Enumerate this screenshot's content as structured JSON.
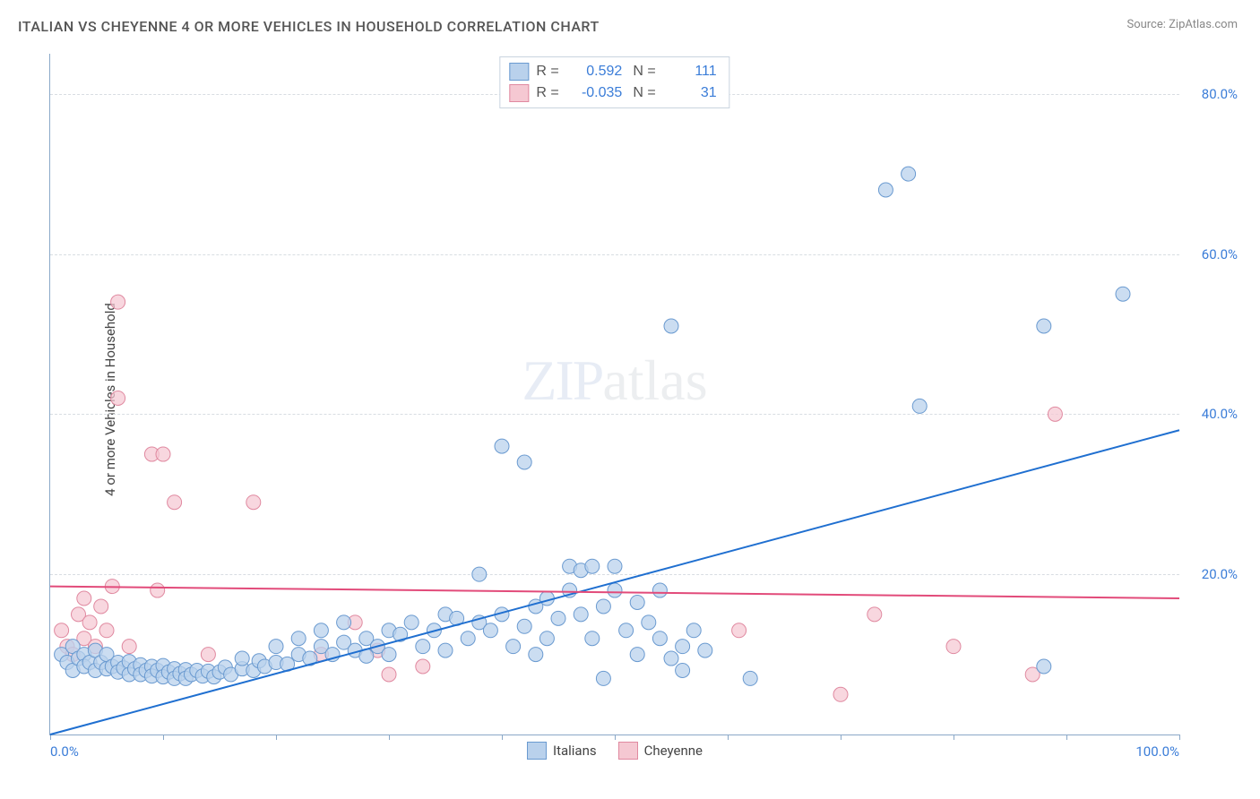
{
  "title": "ITALIAN VS CHEYENNE 4 OR MORE VEHICLES IN HOUSEHOLD CORRELATION CHART",
  "source_prefix": "Source: ",
  "source": "ZipAtlas.com",
  "ylabel": "4 or more Vehicles in Household",
  "watermark_zip": "ZIP",
  "watermark_atlas": "atlas",
  "chart": {
    "type": "scatter",
    "xlim": [
      0,
      100
    ],
    "ylim": [
      0,
      85
    ],
    "xtick_positions": [
      0,
      10,
      20,
      30,
      40,
      50,
      60,
      70,
      80,
      90,
      100
    ],
    "xtick_labels": {
      "0": "0.0%",
      "100": "100.0%"
    },
    "ytick_positions": [
      20,
      40,
      60,
      80
    ],
    "ytick_labels": [
      "20.0%",
      "40.0%",
      "60.0%",
      "80.0%"
    ],
    "grid_color": "#d8dde2",
    "axis_color": "#8aa8c8",
    "tick_label_color": "#3b7dd8",
    "background_color": "#ffffff",
    "series": [
      {
        "name": "Italians",
        "marker_fill": "#b9d1ec",
        "marker_stroke": "#6a9ad0",
        "marker_opacity": 0.75,
        "marker_radius": 8,
        "trend": {
          "x0": 0,
          "y0": 0,
          "x1": 100,
          "y1": 38,
          "color": "#1f6fd0",
          "width": 2
        },
        "R": 0.592,
        "N": 111,
        "points": [
          [
            1,
            10
          ],
          [
            1.5,
            9
          ],
          [
            2,
            11
          ],
          [
            2,
            8
          ],
          [
            2.5,
            9.5
          ],
          [
            3,
            10
          ],
          [
            3,
            8.5
          ],
          [
            3.5,
            9
          ],
          [
            4,
            10.5
          ],
          [
            4,
            8
          ],
          [
            4.5,
            9
          ],
          [
            5,
            8.2
          ],
          [
            5,
            10
          ],
          [
            5.5,
            8.5
          ],
          [
            6,
            9
          ],
          [
            6,
            7.8
          ],
          [
            6.5,
            8.3
          ],
          [
            7,
            9.1
          ],
          [
            7,
            7.5
          ],
          [
            7.5,
            8.2
          ],
          [
            8,
            8.7
          ],
          [
            8,
            7.5
          ],
          [
            8.5,
            8
          ],
          [
            9,
            8.5
          ],
          [
            9,
            7.3
          ],
          [
            9.5,
            8
          ],
          [
            10,
            8.6
          ],
          [
            10,
            7.2
          ],
          [
            10.5,
            7.8
          ],
          [
            11,
            8.2
          ],
          [
            11,
            7
          ],
          [
            11.5,
            7.6
          ],
          [
            12,
            8.1
          ],
          [
            12,
            7
          ],
          [
            12.5,
            7.5
          ],
          [
            13,
            8
          ],
          [
            13.5,
            7.3
          ],
          [
            14,
            7.9
          ],
          [
            14.5,
            7.2
          ],
          [
            15,
            7.8
          ],
          [
            15.5,
            8.4
          ],
          [
            16,
            7.5
          ],
          [
            17,
            8.2
          ],
          [
            17,
            9.5
          ],
          [
            18,
            8
          ],
          [
            18.5,
            9.2
          ],
          [
            19,
            8.5
          ],
          [
            20,
            9
          ],
          [
            20,
            11
          ],
          [
            21,
            8.8
          ],
          [
            22,
            10
          ],
          [
            22,
            12
          ],
          [
            23,
            9.5
          ],
          [
            24,
            11
          ],
          [
            24,
            13
          ],
          [
            25,
            10
          ],
          [
            26,
            11.5
          ],
          [
            26,
            14
          ],
          [
            27,
            10.5
          ],
          [
            28,
            12
          ],
          [
            28,
            9.8
          ],
          [
            29,
            11
          ],
          [
            30,
            13
          ],
          [
            30,
            10
          ],
          [
            31,
            12.5
          ],
          [
            32,
            14
          ],
          [
            33,
            11
          ],
          [
            34,
            13
          ],
          [
            35,
            15
          ],
          [
            35,
            10.5
          ],
          [
            36,
            14.5
          ],
          [
            37,
            12
          ],
          [
            38,
            14
          ],
          [
            38,
            20
          ],
          [
            39,
            13
          ],
          [
            40,
            15
          ],
          [
            40,
            36
          ],
          [
            41,
            11
          ],
          [
            42,
            13.5
          ],
          [
            42,
            34
          ],
          [
            43,
            16
          ],
          [
            43,
            10
          ],
          [
            44,
            12
          ],
          [
            44,
            17
          ],
          [
            45,
            14.5
          ],
          [
            46,
            21
          ],
          [
            46,
            18
          ],
          [
            47,
            15
          ],
          [
            47,
            20.5
          ],
          [
            48,
            12
          ],
          [
            48,
            21
          ],
          [
            49,
            16
          ],
          [
            49,
            7
          ],
          [
            50,
            18
          ],
          [
            50,
            21
          ],
          [
            51,
            13
          ],
          [
            52,
            16.5
          ],
          [
            52,
            10
          ],
          [
            53,
            14
          ],
          [
            54,
            12
          ],
          [
            54,
            18
          ],
          [
            55,
            9.5
          ],
          [
            55,
            51
          ],
          [
            56,
            11
          ],
          [
            56,
            8
          ],
          [
            57,
            13
          ],
          [
            58,
            10.5
          ],
          [
            62,
            7
          ],
          [
            74,
            68
          ],
          [
            76,
            70
          ],
          [
            77,
            41
          ],
          [
            88,
            51
          ],
          [
            95,
            55
          ],
          [
            88,
            8.5
          ]
        ]
      },
      {
        "name": "Cheyenne",
        "marker_fill": "#f5c8d2",
        "marker_stroke": "#e089a0",
        "marker_opacity": 0.72,
        "marker_radius": 8,
        "trend": {
          "x0": 0,
          "y0": 18.5,
          "x1": 100,
          "y1": 17,
          "color": "#e24b7a",
          "width": 2
        },
        "R": -0.035,
        "N": 31,
        "points": [
          [
            1,
            13
          ],
          [
            1.5,
            11
          ],
          [
            2,
            10
          ],
          [
            2.5,
            15
          ],
          [
            3,
            12
          ],
          [
            3,
            17
          ],
          [
            3.5,
            14
          ],
          [
            4,
            11
          ],
          [
            4.5,
            16
          ],
          [
            5,
            13
          ],
          [
            5.5,
            18.5
          ],
          [
            6,
            54
          ],
          [
            6,
            42
          ],
          [
            7,
            11
          ],
          [
            9,
            35
          ],
          [
            9.5,
            18
          ],
          [
            10,
            35
          ],
          [
            11,
            29
          ],
          [
            14,
            10
          ],
          [
            18,
            29
          ],
          [
            24,
            10
          ],
          [
            27,
            14
          ],
          [
            29,
            10.5
          ],
          [
            30,
            7.5
          ],
          [
            33,
            8.5
          ],
          [
            70,
            5
          ],
          [
            73,
            15
          ],
          [
            80,
            11
          ],
          [
            87,
            7.5
          ],
          [
            89,
            40
          ],
          [
            61,
            13
          ]
        ]
      }
    ]
  },
  "legend_top": {
    "r_label": "R =",
    "n_label": "N =",
    "rows": [
      {
        "swatch": "blue",
        "r": "0.592",
        "n": "111"
      },
      {
        "swatch": "pink",
        "r": "-0.035",
        "n": "31"
      }
    ]
  },
  "legend_bottom": [
    {
      "swatch": "blue",
      "label": "Italians"
    },
    {
      "swatch": "pink",
      "label": "Cheyenne"
    }
  ]
}
